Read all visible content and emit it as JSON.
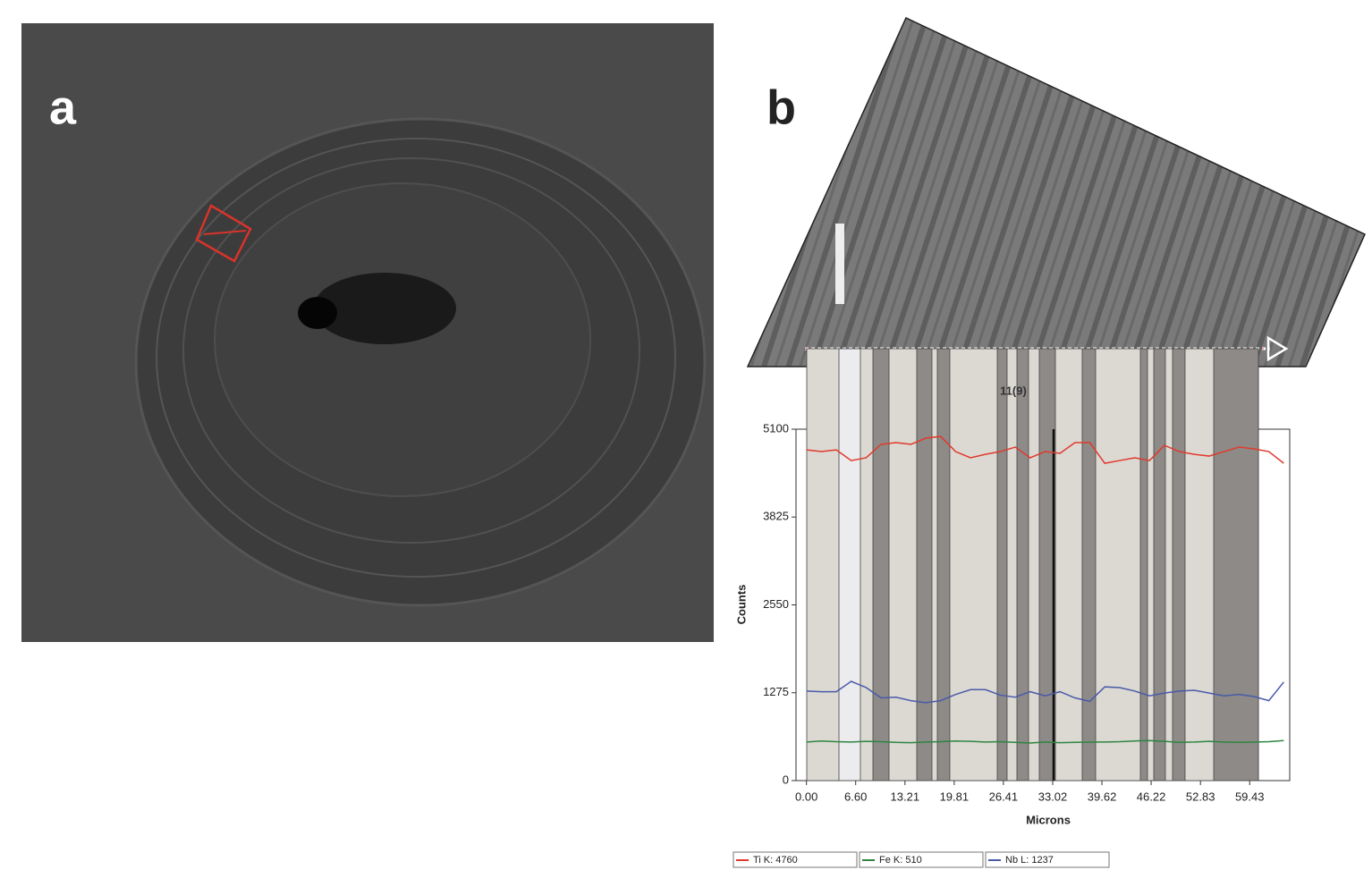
{
  "panel_labels": [
    "a",
    "b"
  ],
  "chart_data": {
    "type": "line",
    "annotation": "11(9)",
    "x_label": "Microns",
    "y_label": "Counts",
    "x": [
      0,
      2,
      4,
      6,
      8,
      10,
      12,
      14,
      16,
      18,
      20,
      22,
      24,
      26,
      28,
      30,
      32,
      34,
      36,
      38,
      40,
      42,
      44,
      46,
      48,
      50,
      52,
      54,
      56,
      58,
      60,
      62,
      64
    ],
    "series": [
      {
        "name": "Ti K: 4760",
        "color": "#e03a2c",
        "values": [
          4800,
          4775,
          4800,
          4645,
          4685,
          4880,
          4905,
          4880,
          4970,
          4995,
          4775,
          4685,
          4735,
          4775,
          4840,
          4685,
          4775,
          4750,
          4905,
          4905,
          4605,
          4645,
          4685,
          4645,
          4865,
          4775,
          4735,
          4710,
          4775,
          4840,
          4815,
          4775,
          4605
        ]
      },
      {
        "name": "Fe K: 510",
        "color": "#2e8540",
        "values": [
          560,
          575,
          565,
          560,
          570,
          565,
          555,
          550,
          560,
          565,
          575,
          570,
          560,
          565,
          555,
          545,
          560,
          550,
          555,
          560,
          560,
          565,
          575,
          580,
          570,
          555,
          560,
          570,
          560,
          555,
          560,
          565,
          580
        ]
      },
      {
        "name": "Nb L: 1237",
        "color": "#4a5ba8",
        "values": [
          1300,
          1290,
          1290,
          1440,
          1350,
          1200,
          1210,
          1160,
          1130,
          1160,
          1250,
          1320,
          1320,
          1240,
          1210,
          1290,
          1230,
          1290,
          1200,
          1150,
          1360,
          1350,
          1300,
          1230,
          1270,
          1300,
          1310,
          1270,
          1230,
          1250,
          1220,
          1160,
          1430
        ]
      }
    ],
    "xlim": [
      -1.4,
      64.8
    ],
    "ylim": [
      0,
      5100
    ],
    "xticks": [
      {
        "value": 0,
        "label": "0.00"
      },
      {
        "value": 6.6,
        "label": "6.60"
      },
      13.21,
      19.81,
      26.41,
      33.02,
      39.62,
      46.22,
      52.83,
      59.43
    ],
    "yticks": [
      0,
      1275,
      2550,
      3825,
      5100
    ]
  }
}
